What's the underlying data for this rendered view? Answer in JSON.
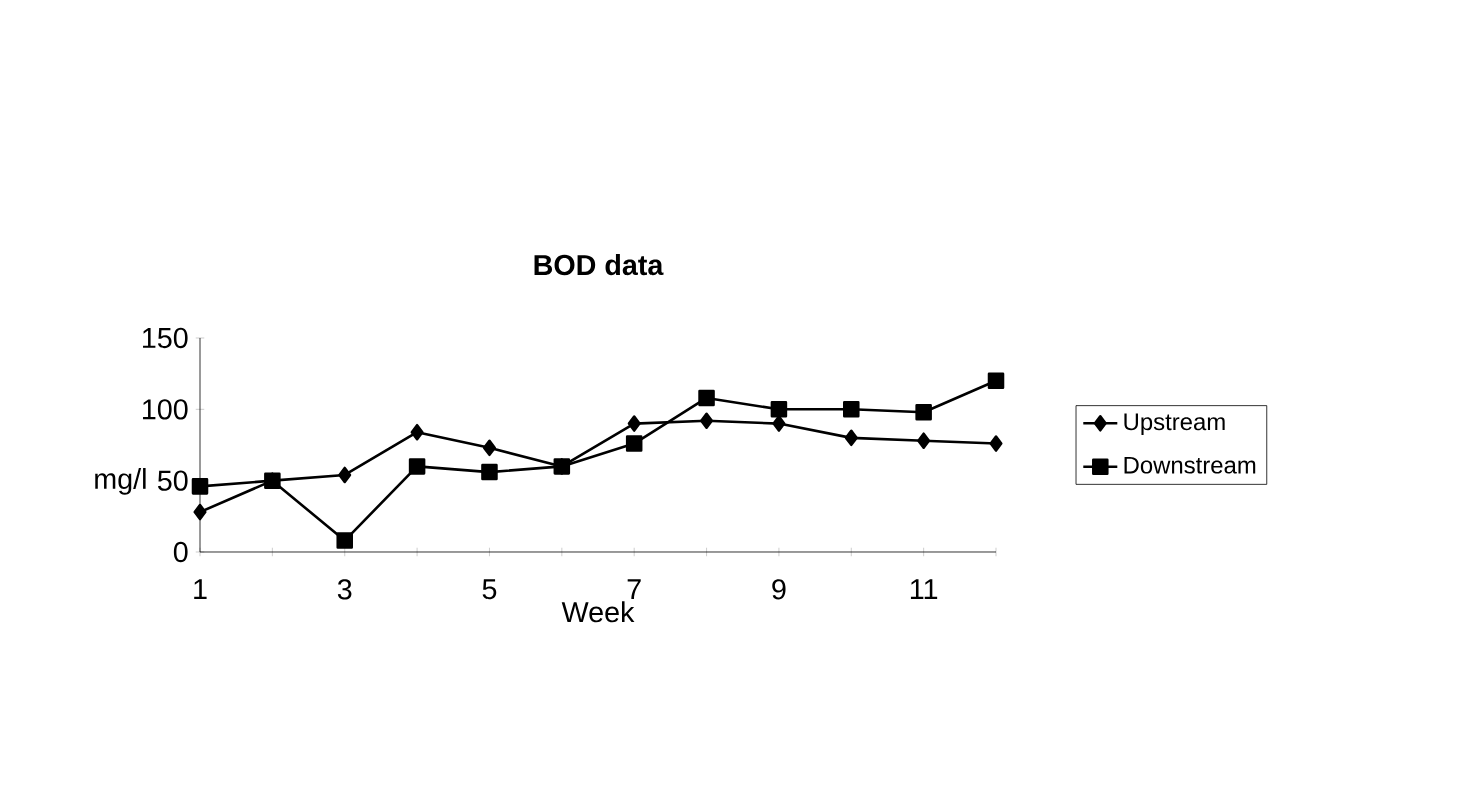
{
  "chart_data": {
    "type": "line",
    "title": "BOD data",
    "xlabel": "Week",
    "ylabel": "mg/l",
    "categories": [
      "1",
      null,
      "3",
      null,
      "5",
      null,
      "7",
      null,
      "9",
      null,
      "11",
      null
    ],
    "series": [
      {
        "name": "Upstream",
        "color": "#000000",
        "marker": "diamond",
        "values": [
          28,
          50,
          54,
          84,
          73,
          60,
          90,
          92,
          90,
          80,
          78,
          76
        ]
      },
      {
        "name": "Downstream",
        "color": "#000000",
        "marker": "square",
        "values": [
          46,
          50,
          8,
          60,
          56,
          60,
          76,
          108,
          100,
          100,
          98,
          120
        ]
      }
    ],
    "ylim": [
      0,
      150
    ],
    "yticks": [
      0,
      50,
      100,
      150
    ],
    "legend": "right",
    "line_style": "solid"
  }
}
